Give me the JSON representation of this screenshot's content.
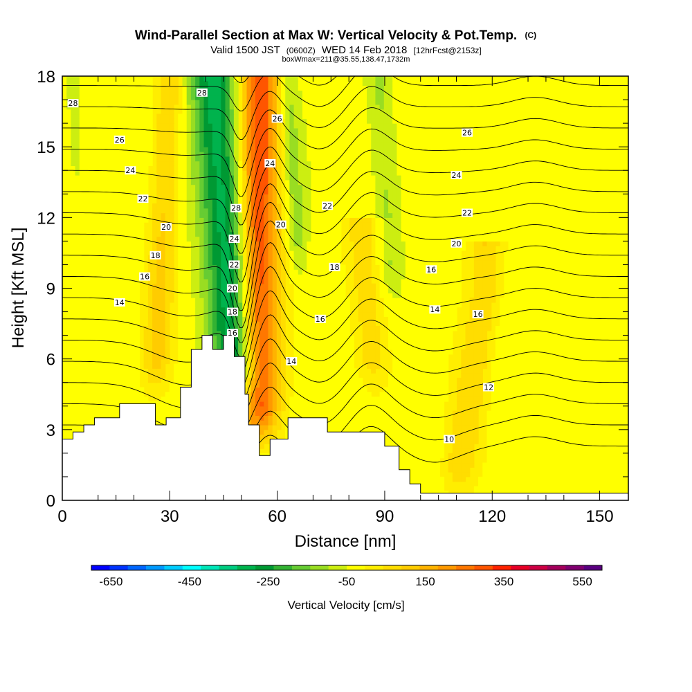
{
  "chart_data": {
    "type": "heatmap",
    "title": "Wind-Parallel Section at Max W: Vertical Velocity & Pot.Temp.",
    "title_mark": "(C)",
    "subtitle_parts": {
      "pre": "Valid 1500 JST",
      "utc": "(0600Z)",
      "date": "WED 14 Feb 2018",
      "fcst": "[12hrFcst@2153z]"
    },
    "subtitle2": "boxWmax=211@35.55,138.47,1732m",
    "xlabel": "Distance [nm]",
    "ylabel": "Height [Kft MSL]",
    "xlim": [
      0,
      158
    ],
    "ylim": [
      0,
      18
    ],
    "x_ticks": [
      "0",
      "30",
      "60",
      "90",
      "120",
      "150"
    ],
    "x_tick_values": [
      0,
      30,
      60,
      90,
      120,
      150
    ],
    "y_ticks": [
      "0",
      "3",
      "6",
      "9",
      "12",
      "15",
      "18"
    ],
    "y_tick_values": [
      0,
      3,
      6,
      9,
      12,
      15,
      18
    ],
    "colorbar": {
      "label": "Vertical Velocity [cm/s]",
      "min": -700,
      "max": 600,
      "step": 50,
      "tick_labels": [
        "-650",
        "-450",
        "-250",
        "-50",
        "150",
        "350",
        "550"
      ],
      "tick_values": [
        -650,
        -450,
        -250,
        -50,
        150,
        350,
        550
      ],
      "colors": [
        "#0000ff",
        "#0033ff",
        "#0066ff",
        "#0099ff",
        "#00ccff",
        "#00ffff",
        "#00e6b8",
        "#00cc80",
        "#00b34d",
        "#009933",
        "#33b233",
        "#66cc33",
        "#99dd22",
        "#ccee11",
        "#ffff00",
        "#ffee00",
        "#ffdd00",
        "#ffcc00",
        "#ffb300",
        "#ff9900",
        "#ff7700",
        "#ff5500",
        "#ff2200",
        "#e60026",
        "#cc0044",
        "#a3005c",
        "#800070",
        "#5a0080"
      ]
    },
    "terrain": [
      [
        0,
        2.6
      ],
      [
        3,
        2.6
      ],
      [
        3,
        2.9
      ],
      [
        6,
        2.9
      ],
      [
        6,
        3.2
      ],
      [
        9,
        3.2
      ],
      [
        9,
        3.5
      ],
      [
        16,
        3.5
      ],
      [
        16,
        4.1
      ],
      [
        26,
        4.1
      ],
      [
        26,
        3.2
      ],
      [
        29,
        3.2
      ],
      [
        29,
        3.5
      ],
      [
        33,
        3.5
      ],
      [
        33,
        4.8
      ],
      [
        36,
        4.8
      ],
      [
        36,
        6.4
      ],
      [
        39,
        6.4
      ],
      [
        39,
        7.0
      ],
      [
        42,
        7.0
      ],
      [
        42,
        6.4
      ],
      [
        45,
        6.4
      ],
      [
        45,
        7.0
      ],
      [
        48,
        7.0
      ],
      [
        48,
        6.1
      ],
      [
        51,
        6.1
      ],
      [
        51,
        4.5
      ],
      [
        52,
        4.5
      ],
      [
        52,
        3.2
      ],
      [
        55,
        3.2
      ],
      [
        55,
        1.9
      ],
      [
        58,
        1.9
      ],
      [
        58,
        2.6
      ],
      [
        61,
        2.6
      ],
      [
        61,
        2.6
      ],
      [
        63,
        2.6
      ],
      [
        63,
        3.5
      ],
      [
        67,
        3.5
      ],
      [
        67,
        3.5
      ],
      [
        74,
        3.5
      ],
      [
        74,
        2.9
      ],
      [
        90,
        2.9
      ],
      [
        90,
        2.3
      ],
      [
        94,
        2.3
      ],
      [
        94,
        1.3
      ],
      [
        97,
        1.3
      ],
      [
        97,
        0.7
      ],
      [
        100,
        0.7
      ],
      [
        100,
        0.3
      ],
      [
        158,
        0.3
      ]
    ],
    "w_features": [
      {
        "kind": "down",
        "x_base": 49,
        "y_base": 4.5,
        "x_top": 42,
        "y_top": 18,
        "width": 6.5,
        "peak": -300
      },
      {
        "kind": "up",
        "x_base": 55,
        "y_base": 3.0,
        "x_top": 55,
        "y_top": 18,
        "width": 5.5,
        "peak": 380
      },
      {
        "kind": "down",
        "x_base": 66,
        "y_base": 10.0,
        "x_top": 63,
        "y_top": 18,
        "width": 2.6,
        "peak": -90
      },
      {
        "kind": "down",
        "x_base": 92,
        "y_base": 9.0,
        "x_top": 88,
        "y_top": 18,
        "width": 3.5,
        "peak": -80
      },
      {
        "kind": "down",
        "x_base": 4,
        "y_base": 14.0,
        "x_top": 3,
        "y_top": 18,
        "width": 1.5,
        "peak": -70
      },
      {
        "kind": "up",
        "x_base": 26,
        "y_base": 5.0,
        "x_top": 30,
        "y_top": 18,
        "width": 4.0,
        "peak": 140
      },
      {
        "kind": "up",
        "x_base": 87,
        "y_base": 5.0,
        "x_top": 84,
        "y_top": 10,
        "width": 5.0,
        "peak": 120
      },
      {
        "kind": "up",
        "x_base": 110,
        "y_base": 0.5,
        "x_top": 118,
        "y_top": 9,
        "width": 5.0,
        "peak": 130
      }
    ],
    "theta_levels": [
      10,
      11,
      12,
      13,
      14,
      15,
      16,
      17,
      18,
      19,
      20,
      21,
      22,
      23,
      24,
      25,
      26,
      27,
      28,
      29
    ],
    "theta_labels": [
      {
        "x": 3.0,
        "y": 16.85,
        "value": "28"
      },
      {
        "x": 16.0,
        "y": 15.3,
        "value": "26"
      },
      {
        "x": 19.0,
        "y": 14.0,
        "value": "24"
      },
      {
        "x": 22.5,
        "y": 12.8,
        "value": "22"
      },
      {
        "x": 29.0,
        "y": 11.6,
        "value": "20"
      },
      {
        "x": 26.0,
        "y": 10.4,
        "value": "18"
      },
      {
        "x": 23.0,
        "y": 9.5,
        "value": "16"
      },
      {
        "x": 16.0,
        "y": 8.4,
        "value": "14"
      },
      {
        "x": 39.0,
        "y": 17.3,
        "value": "28"
      },
      {
        "x": 48.5,
        "y": 12.4,
        "value": "28"
      },
      {
        "x": 48.0,
        "y": 11.1,
        "value": "24"
      },
      {
        "x": 48.0,
        "y": 10.0,
        "value": "22"
      },
      {
        "x": 47.5,
        "y": 9.0,
        "value": "20"
      },
      {
        "x": 47.5,
        "y": 8.0,
        "value": "18"
      },
      {
        "x": 47.5,
        "y": 7.1,
        "value": "16"
      },
      {
        "x": 60.0,
        "y": 16.2,
        "value": "26"
      },
      {
        "x": 58.0,
        "y": 14.3,
        "value": "24"
      },
      {
        "x": 61.0,
        "y": 11.7,
        "value": "20"
      },
      {
        "x": 74.0,
        "y": 12.5,
        "value": "22"
      },
      {
        "x": 76.0,
        "y": 9.9,
        "value": "18"
      },
      {
        "x": 72.0,
        "y": 7.7,
        "value": "16"
      },
      {
        "x": 64.0,
        "y": 5.9,
        "value": "14"
      },
      {
        "x": 113.0,
        "y": 15.6,
        "value": "26"
      },
      {
        "x": 110.0,
        "y": 13.8,
        "value": "24"
      },
      {
        "x": 113.0,
        "y": 12.2,
        "value": "22"
      },
      {
        "x": 110.0,
        "y": 10.9,
        "value": "20"
      },
      {
        "x": 103.0,
        "y": 9.8,
        "value": "16"
      },
      {
        "x": 104.0,
        "y": 8.1,
        "value": "14"
      },
      {
        "x": 116.0,
        "y": 7.9,
        "value": "16"
      },
      {
        "x": 119.0,
        "y": 4.8,
        "value": "12"
      },
      {
        "x": 108.0,
        "y": 2.6,
        "value": "10"
      }
    ]
  }
}
